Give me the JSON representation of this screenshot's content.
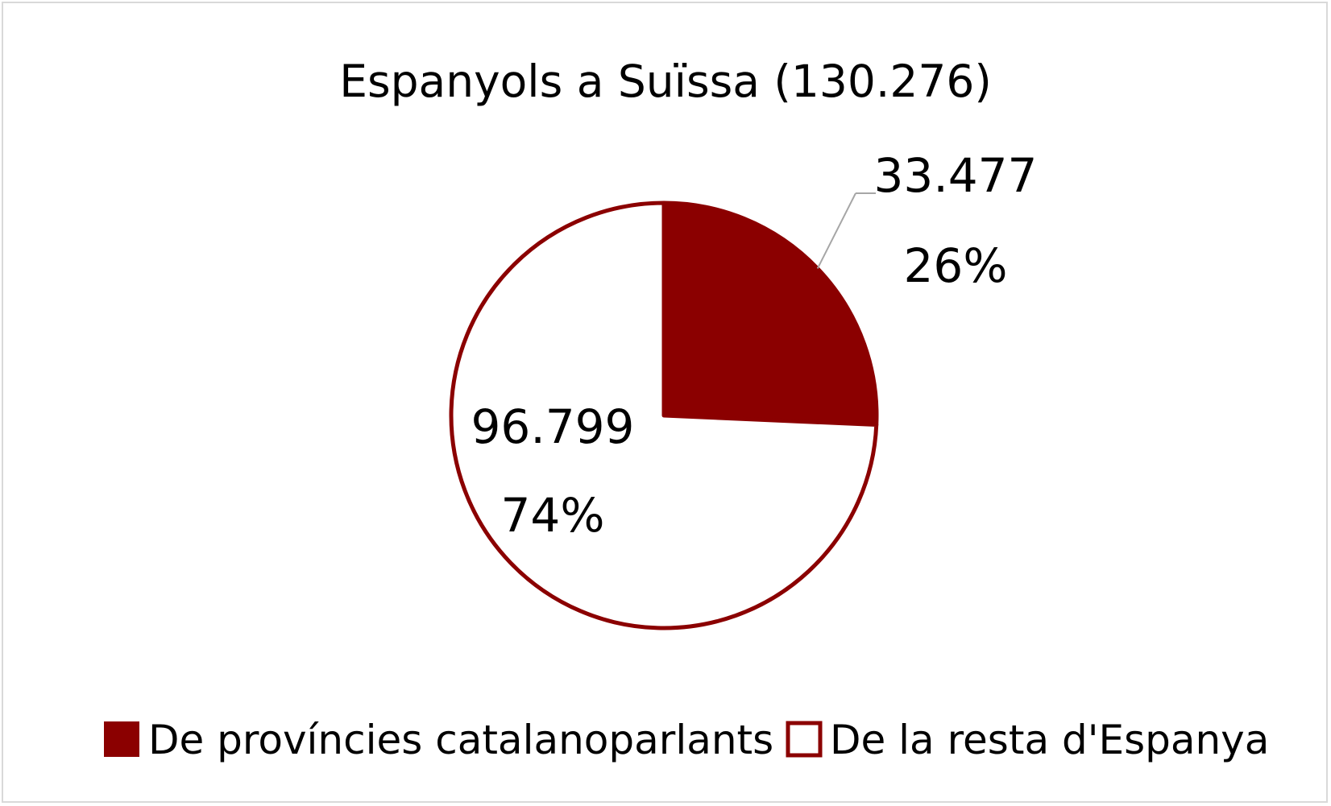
{
  "chart_data": {
    "type": "pie",
    "title": "Espanyols a Suïssa (130.276)",
    "series": [
      {
        "name": "De províncies catalanoparlants",
        "value": 33477,
        "value_label": "33.477",
        "percent_label": "26%",
        "fill": "#8b0000"
      },
      {
        "name": "De la resta d'Espanya",
        "value": 96799,
        "value_label": "96.799",
        "percent_label": "74%",
        "fill": "#ffffff"
      }
    ],
    "legend": {
      "placement": "bottom"
    },
    "colors": {
      "accent": "#8b0000",
      "frame": "#d9d9d9",
      "leader_line": "#a6a6a6"
    }
  }
}
